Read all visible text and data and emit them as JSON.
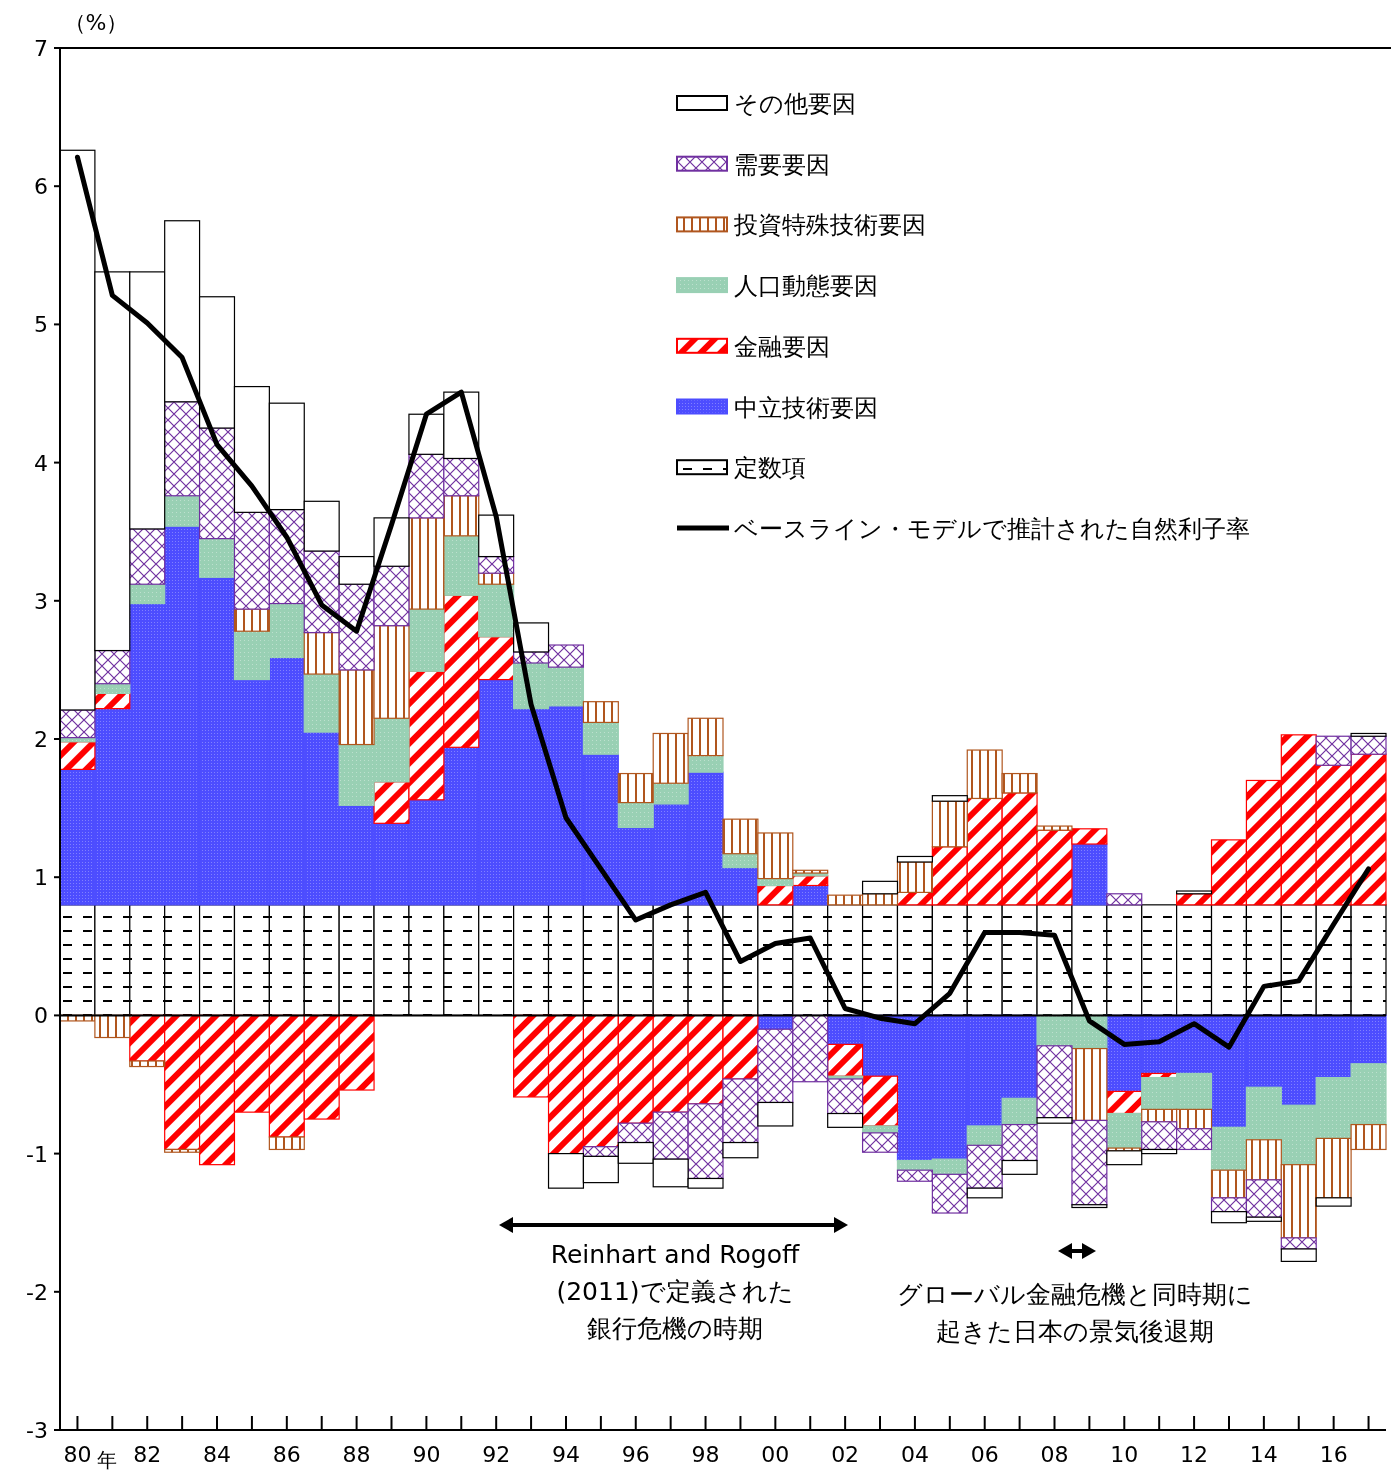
{
  "chart_data": {
    "type": "bar",
    "stacked": true,
    "ylabel": "（%）",
    "xlabel": "年",
    "x": [
      1980,
      1981,
      1982,
      1983,
      1984,
      1985,
      1986,
      1987,
      1988,
      1989,
      1990,
      1991,
      1992,
      1993,
      1994,
      1995,
      1996,
      1997,
      1998,
      1999,
      2000,
      2001,
      2002,
      2003,
      2004,
      2005,
      2006,
      2007,
      2008,
      2009,
      2010,
      2011,
      2012,
      2013,
      2014,
      2015,
      2016,
      2017
    ],
    "xlim": [
      1979.5,
      2017.5
    ],
    "xticks": [
      {
        "value": 1980,
        "label": "80"
      },
      {
        "value": 1981,
        "label": null
      },
      {
        "value": 1982,
        "label": "82"
      },
      {
        "value": 1983,
        "label": null
      },
      {
        "value": 1984,
        "label": "84"
      },
      {
        "value": 1985,
        "label": null
      },
      {
        "value": 1986,
        "label": "86"
      },
      {
        "value": 1987,
        "label": null
      },
      {
        "value": 1988,
        "label": "88"
      },
      {
        "value": 1989,
        "label": null
      },
      {
        "value": 1990,
        "label": "90"
      },
      {
        "value": 1991,
        "label": null
      },
      {
        "value": 1992,
        "label": "92"
      },
      {
        "value": 1993,
        "label": null
      },
      {
        "value": 1994,
        "label": "94"
      },
      {
        "value": 1995,
        "label": null
      },
      {
        "value": 1996,
        "label": "96"
      },
      {
        "value": 1997,
        "label": null
      },
      {
        "value": 1998,
        "label": "98"
      },
      {
        "value": 1999,
        "label": null
      },
      {
        "value": 2000,
        "label": "00"
      },
      {
        "value": 2001,
        "label": null
      },
      {
        "value": 2002,
        "label": "02"
      },
      {
        "value": 2003,
        "label": null
      },
      {
        "value": 2004,
        "label": "04"
      },
      {
        "value": 2005,
        "label": null
      },
      {
        "value": 2006,
        "label": "06"
      },
      {
        "value": 2007,
        "label": null
      },
      {
        "value": 2008,
        "label": "08"
      },
      {
        "value": 2009,
        "label": null
      },
      {
        "value": 2010,
        "label": "10"
      },
      {
        "value": 2011,
        "label": null
      },
      {
        "value": 2012,
        "label": "12"
      },
      {
        "value": 2013,
        "label": null
      },
      {
        "value": 2014,
        "label": "14"
      },
      {
        "value": 2015,
        "label": null
      },
      {
        "value": 2016,
        "label": "16"
      },
      {
        "value": 2017,
        "label": null
      }
    ],
    "ylim": [
      -3,
      7
    ],
    "yticks": [
      -3,
      -2,
      -1,
      0,
      1,
      2,
      3,
      4,
      5,
      6,
      7
    ],
    "legend": "top right",
    "series": [
      {
        "name": "定数項",
        "color": "#000000",
        "values": [
          0.8,
          0.8,
          0.8,
          0.8,
          0.8,
          0.8,
          0.8,
          0.8,
          0.8,
          0.8,
          0.8,
          0.8,
          0.8,
          0.8,
          0.8,
          0.8,
          0.8,
          0.8,
          0.8,
          0.8,
          0.8,
          0.8,
          0.8,
          0.8,
          0.8,
          0.8,
          0.8,
          0.8,
          0.8,
          0.8,
          0.8,
          0.8,
          0.8,
          0.8,
          0.8,
          0.8,
          0.8,
          0.8
        ]
      },
      {
        "name": "中立技術要因",
        "color": "#4d4dff",
        "values": [
          0.98,
          1.42,
          2.18,
          2.74,
          2.37,
          1.63,
          1.79,
          1.25,
          0.72,
          0.59,
          0.76,
          1.14,
          1.63,
          1.42,
          1.44,
          1.09,
          0.56,
          0.73,
          0.96,
          0.27,
          -0.1,
          0.14,
          -0.21,
          -0.44,
          -1.05,
          -1.04,
          -0.8,
          -0.6,
          null,
          0.44,
          -0.55,
          -0.42,
          -0.42,
          -0.81,
          -0.52,
          -0.65,
          -0.45,
          -0.35
        ]
      },
      {
        "name": "金融要因",
        "color": "#ff0000",
        "values": [
          0.2,
          0.11,
          -0.33,
          -0.97,
          -1.08,
          -0.7,
          -0.88,
          -0.75,
          -0.54,
          0.3,
          0.93,
          1.1,
          0.31,
          -0.59,
          -1.0,
          -0.95,
          -0.78,
          -0.7,
          -0.64,
          -0.46,
          0.14,
          0.07,
          -0.23,
          -0.36,
          0.09,
          0.42,
          0.77,
          0.81,
          0.54,
          0.11,
          -0.16,
          -0.03,
          0.08,
          0.47,
          0.9,
          1.23,
          1.01,
          1.09
        ]
      },
      {
        "name": "人口動態要因",
        "color": "#99d0b4",
        "values": [
          0.03,
          0.07,
          0.14,
          0.22,
          0.28,
          0.35,
          0.39,
          0.42,
          0.44,
          0.46,
          0.45,
          0.43,
          0.38,
          0.33,
          0.28,
          0.23,
          0.18,
          0.15,
          0.12,
          0.1,
          0.05,
          0.02,
          -0.02,
          -0.05,
          -0.07,
          -0.11,
          -0.14,
          -0.19,
          -0.22,
          -0.24,
          -0.25,
          -0.23,
          -0.26,
          -0.31,
          -0.38,
          -0.43,
          -0.44,
          -0.44
        ]
      },
      {
        "name": "投資特殊技術要因",
        "color": "#b0561e",
        "values": [
          -0.04,
          -0.16,
          -0.04,
          -0.02,
          null,
          0.16,
          -0.09,
          0.3,
          0.54,
          0.67,
          0.66,
          0.29,
          0.08,
          null,
          null,
          0.15,
          0.21,
          0.36,
          0.27,
          0.25,
          0.33,
          0.02,
          0.07,
          0.08,
          0.22,
          0.33,
          0.35,
          0.14,
          0.03,
          -0.52,
          -0.02,
          -0.09,
          -0.14,
          -0.2,
          -0.29,
          -0.53,
          -0.43,
          -0.18
        ]
      },
      {
        "name": "需要要因",
        "color": "#7030a0",
        "values": [
          0.2,
          0.24,
          0.4,
          0.68,
          0.8,
          0.7,
          0.68,
          0.59,
          0.62,
          0.43,
          0.46,
          0.27,
          0.12,
          0.08,
          0.16,
          -0.07,
          -0.14,
          -0.34,
          -0.54,
          -0.46,
          -0.53,
          -0.48,
          -0.25,
          -0.14,
          -0.08,
          -0.28,
          -0.31,
          -0.26,
          -0.52,
          -0.61,
          0.08,
          -0.2,
          -0.15,
          -0.1,
          -0.27,
          -0.08,
          0.21,
          0.13
        ]
      },
      {
        "name": "その他要因",
        "color": "#000000",
        "values": [
          4.05,
          2.74,
          1.86,
          1.31,
          0.95,
          0.91,
          0.77,
          0.36,
          0.2,
          0.35,
          0.29,
          0.48,
          0.3,
          0.21,
          -0.25,
          -0.19,
          -0.15,
          -0.2,
          -0.07,
          -0.11,
          -0.17,
          null,
          -0.1,
          0.09,
          0.04,
          0.04,
          -0.07,
          -0.1,
          -0.04,
          -0.02,
          -0.1,
          -0.03,
          0.02,
          -0.08,
          -0.03,
          -0.09,
          -0.06,
          0.02
        ]
      },
      {
        "name": "ベースライン・モデルで推計された自然利子率",
        "type": "line",
        "color": "#000000",
        "line_style": "solid",
        "values": [
          6.21,
          5.21,
          5.01,
          4.76,
          4.13,
          3.83,
          3.46,
          2.97,
          2.78,
          3.55,
          4.35,
          4.51,
          3.61,
          2.25,
          1.43,
          1.06,
          0.69,
          0.8,
          0.89,
          0.39,
          0.52,
          0.56,
          0.05,
          -0.02,
          -0.06,
          0.16,
          0.6,
          0.6,
          0.58,
          -0.04,
          -0.21,
          -0.19,
          -0.06,
          -0.23,
          0.21,
          0.25,
          0.66,
          1.06
        ]
      }
    ],
    "annotations": [
      "Reinhart and Rogoff",
      "(2011)で定義された",
      "銀行危機の時期",
      "グローバル金融危機と同時期に",
      "起きた日本の景気後退期"
    ]
  }
}
